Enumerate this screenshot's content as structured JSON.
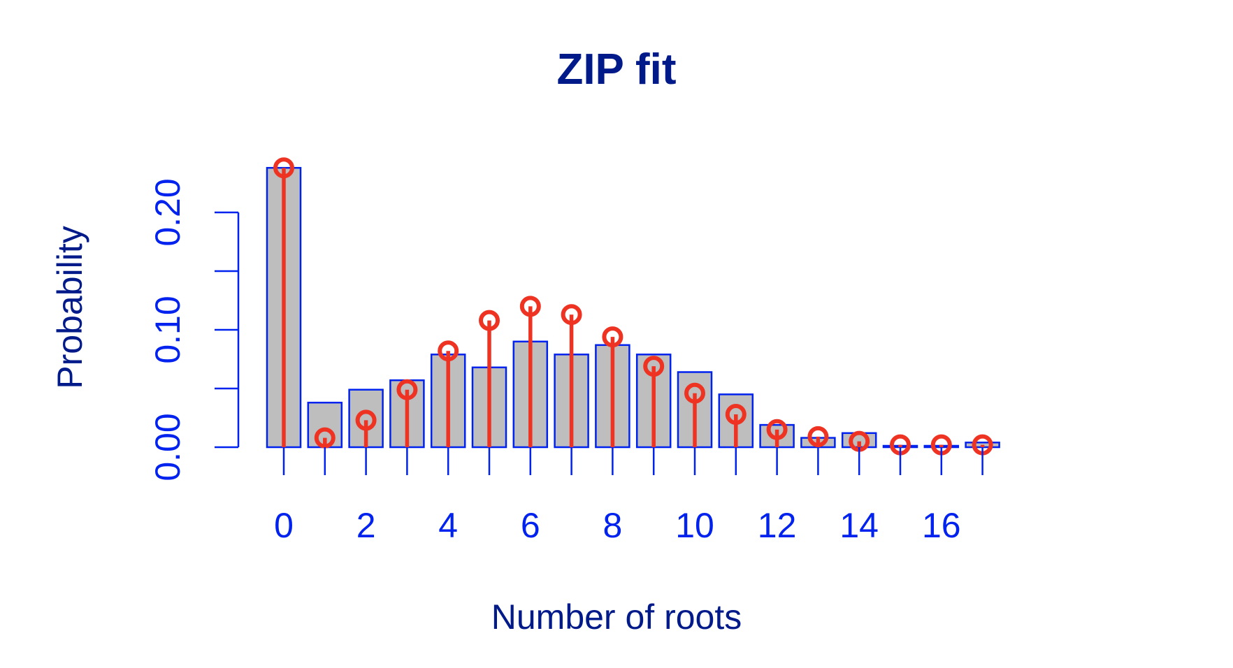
{
  "chart_data": {
    "type": "bar",
    "title": "ZIP fit",
    "xlabel": "Number of roots",
    "ylabel": "Probability",
    "x_tick_labels": [
      "0",
      "2",
      "4",
      "6",
      "8",
      "10",
      "12",
      "14",
      "16"
    ],
    "y_tick_labels": [
      "0.00",
      "0.10",
      "0.20"
    ],
    "ylim": [
      0,
      0.24
    ],
    "categories": [
      0,
      1,
      2,
      3,
      4,
      5,
      6,
      7,
      8,
      9,
      10,
      11,
      12,
      13,
      14,
      15,
      16,
      17
    ],
    "series": [
      {
        "type": "bar",
        "values": [
          0.238,
          0.038,
          0.049,
          0.057,
          0.079,
          0.068,
          0.09,
          0.079,
          0.087,
          0.079,
          0.064,
          0.045,
          0.019,
          0.008,
          0.012,
          0.001,
          0.001,
          0.004
        ]
      },
      {
        "type": "lollipop",
        "values": [
          0.238,
          0.008,
          0.023,
          0.049,
          0.082,
          0.108,
          0.12,
          0.113,
          0.094,
          0.069,
          0.046,
          0.028,
          0.015,
          0.009,
          0.005,
          0.002,
          0.002,
          0.002
        ]
      }
    ],
    "colors": {
      "bar_fill": "#bebebe",
      "bar_stroke": "#0022ee",
      "lollipop": "#ee3322",
      "axis": "#0022ee",
      "title": "#001a8a"
    },
    "grid": false
  }
}
